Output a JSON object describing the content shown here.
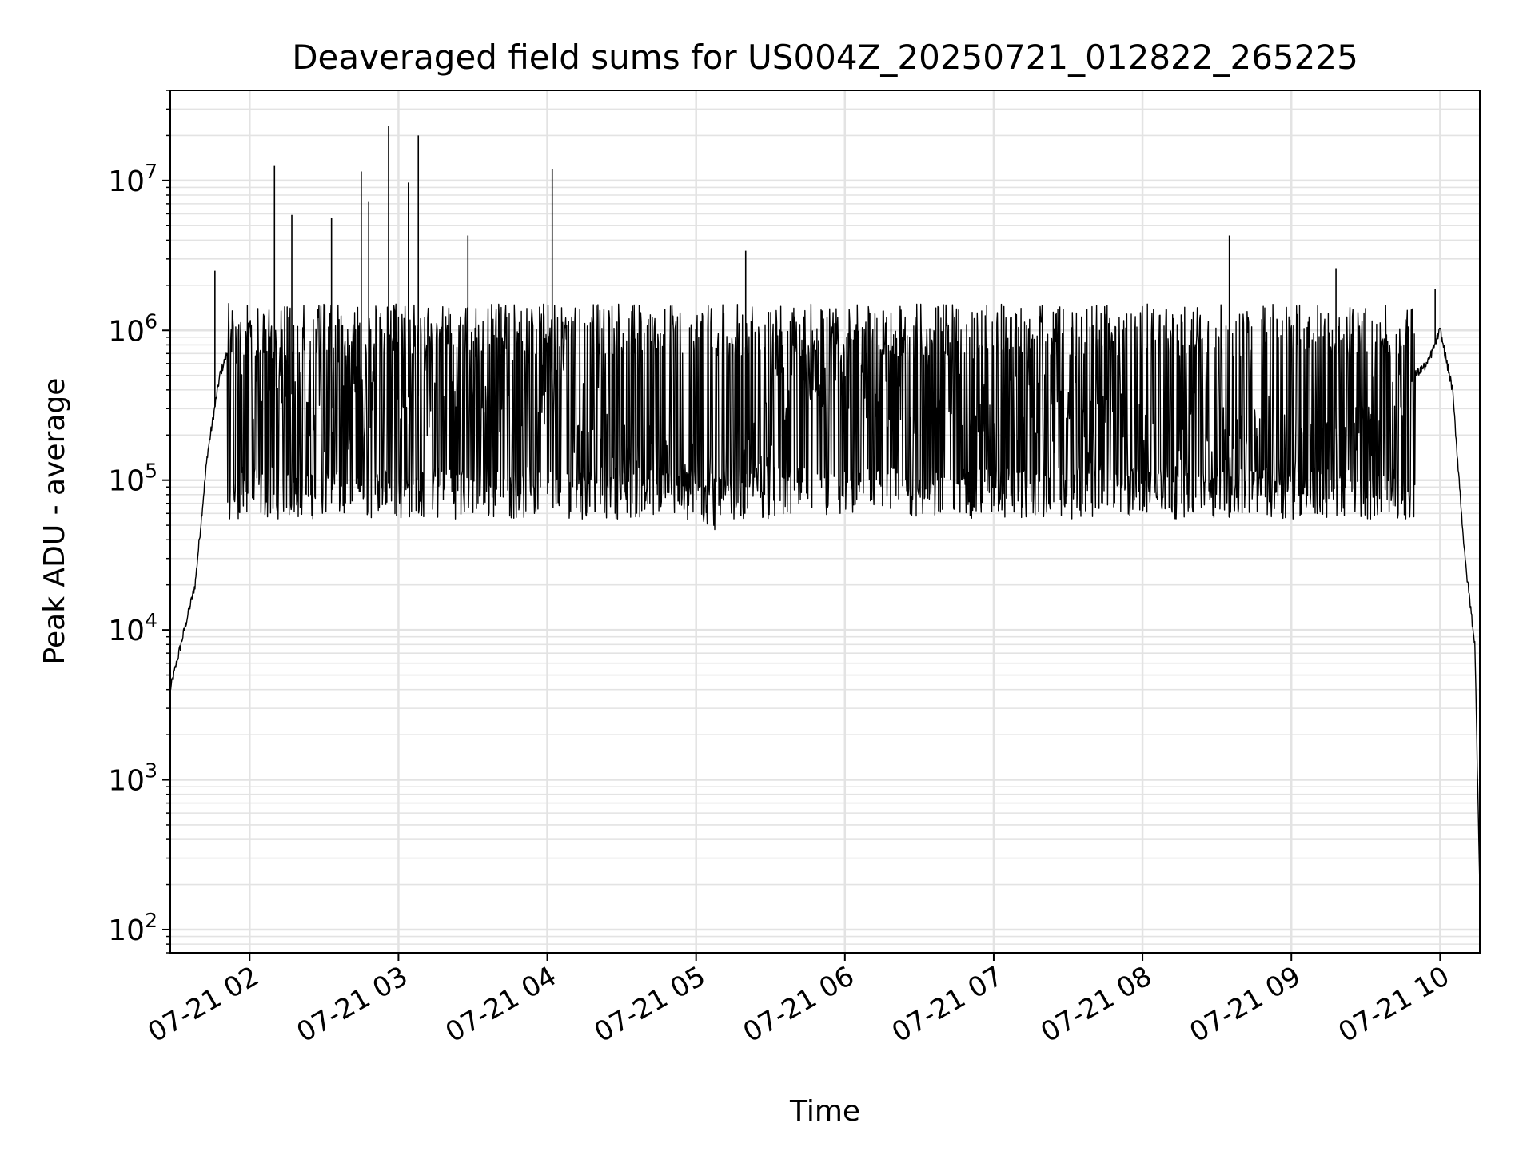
{
  "chart_data": {
    "type": "line",
    "title": "Deaveraged field sums for US004Z_20250721_012822_265225",
    "xlabel": "Time",
    "ylabel": "Peak ADU - average",
    "yscale": "log",
    "xlim": [
      "2025-07-21 01:28",
      "2025-07-21 10:16"
    ],
    "ylim": [
      70,
      40000000
    ],
    "x_tick_labels": [
      "07-21 02",
      "07-21 03",
      "07-21 04",
      "07-21 05",
      "07-21 06",
      "07-21 07",
      "07-21 08",
      "07-21 09",
      "07-21 10"
    ],
    "y_tick_labels": [
      {
        "base": "10",
        "exp": "2"
      },
      {
        "base": "10",
        "exp": "3"
      },
      {
        "base": "10",
        "exp": "4"
      },
      {
        "base": "10",
        "exp": "5"
      },
      {
        "base": "10",
        "exp": "6"
      },
      {
        "base": "10",
        "exp": "7"
      }
    ],
    "grid": "both (major and minor)",
    "line_color": "#000000",
    "grid_color": "#e3e3e3",
    "series": [
      {
        "note_values": "approximate envelope read off the plot",
        "x": [
          "2025-07-21 01:28",
          "2025-07-21 01:33",
          "2025-07-21 01:38",
          "2025-07-21 01:43",
          "2025-07-21 01:48",
          "2025-07-21 01:53",
          "2025-07-21 02:00",
          "2025-07-21 02:30",
          "2025-07-21 03:00",
          "2025-07-21 03:30",
          "2025-07-21 04:00",
          "2025-07-21 04:30",
          "2025-07-21 05:00",
          "2025-07-21 05:20",
          "2025-07-21 05:35",
          "2025-07-21 06:00",
          "2025-07-21 06:30",
          "2025-07-21 07:00",
          "2025-07-21 07:30",
          "2025-07-21 08:00",
          "2025-07-21 08:30",
          "2025-07-21 09:00",
          "2025-07-21 09:30",
          "2025-07-21 09:55",
          "2025-07-21 10:00",
          "2025-07-21 10:05",
          "2025-07-21 10:10",
          "2025-07-21 10:14",
          "2025-07-21 10:16"
        ],
        "y": [
          4000,
          9000,
          20000,
          150000,
          500000,
          900000,
          500000,
          300000,
          350000,
          400000,
          450000,
          150000,
          90000,
          90000,
          500000,
          500000,
          400000,
          300000,
          250000,
          220000,
          200000,
          180000,
          250000,
          600000,
          1000000,
          400000,
          30000,
          8000,
          200
        ]
      }
    ],
    "spikes": [
      {
        "x": "2025-07-21 01:46",
        "y": 2500000
      },
      {
        "x": "2025-07-21 02:10",
        "y": 12500000
      },
      {
        "x": "2025-07-21 02:17",
        "y": 5900000
      },
      {
        "x": "2025-07-21 02:33",
        "y": 5600000
      },
      {
        "x": "2025-07-21 02:45",
        "y": 11500000
      },
      {
        "x": "2025-07-21 02:48",
        "y": 7200000
      },
      {
        "x": "2025-07-21 02:56",
        "y": 23000000
      },
      {
        "x": "2025-07-21 03:04",
        "y": 9700000
      },
      {
        "x": "2025-07-21 03:08",
        "y": 20000000
      },
      {
        "x": "2025-07-21 03:28",
        "y": 4300000
      },
      {
        "x": "2025-07-21 04:02",
        "y": 12000000
      },
      {
        "x": "2025-07-21 05:20",
        "y": 3400000
      },
      {
        "x": "2025-07-21 08:35",
        "y": 4300000
      },
      {
        "x": "2025-07-21 09:18",
        "y": 2600000
      },
      {
        "x": "2025-07-21 09:58",
        "y": 1900000
      }
    ]
  }
}
